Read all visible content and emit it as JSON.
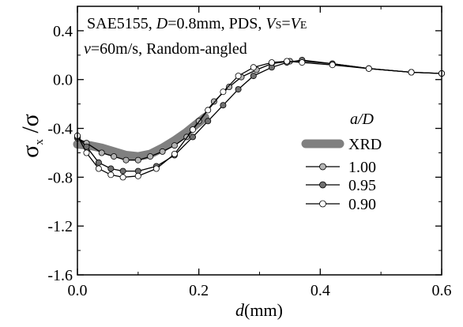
{
  "chart_data": {
    "type": "line",
    "xlabel_var": "d",
    "xlabel_unit": "(mm)",
    "ylabel_var": "σ",
    "ylabel_sub": "x",
    "ylabel_den": "σ",
    "xlim": [
      0.0,
      0.6
    ],
    "ylim": [
      -1.6,
      0.6
    ],
    "x_ticks": [
      0.0,
      0.2,
      0.4,
      0.6
    ],
    "x_tick_labels": [
      "0.0",
      "0.2",
      "0.4",
      "0.6"
    ],
    "y_ticks": [
      0.4,
      0.0,
      -0.4,
      -0.8,
      -1.2,
      -1.6
    ],
    "y_tick_labels": [
      "0.4",
      "0.0",
      "-0.4",
      "-0.8",
      "-1.2",
      "-1.6"
    ],
    "grid": false,
    "annotation_line1": "SAE5155, D=0.8mm, PDS, VS=VE",
    "annotation_line2": "v=60m/s, Random-angled",
    "legend_title": "a/D",
    "legend_position": "right",
    "series": [
      {
        "name": "XRD",
        "style": "thick-band",
        "color": "#808080",
        "x": [
          0.0,
          0.02,
          0.04,
          0.06,
          0.08,
          0.1,
          0.12,
          0.14,
          0.16,
          0.18,
          0.2,
          0.21
        ],
        "y": [
          -0.53,
          -0.54,
          -0.56,
          -0.59,
          -0.62,
          -0.63,
          -0.61,
          -0.56,
          -0.5,
          -0.43,
          -0.35,
          -0.31
        ]
      },
      {
        "name": "1.00",
        "style": "line-markers",
        "marker_fill": "#b4b4b4",
        "x": [
          0.0,
          0.015,
          0.04,
          0.06,
          0.08,
          0.1,
          0.12,
          0.14,
          0.16,
          0.18,
          0.2,
          0.225,
          0.25,
          0.27,
          0.295,
          0.32,
          0.35,
          0.37,
          0.42,
          0.48,
          0.55,
          0.6
        ],
        "y": [
          -0.48,
          -0.52,
          -0.6,
          -0.63,
          -0.66,
          -0.66,
          -0.63,
          -0.59,
          -0.54,
          -0.47,
          -0.34,
          -0.18,
          -0.06,
          0.02,
          0.08,
          0.13,
          0.15,
          0.15,
          0.13,
          0.09,
          0.06,
          0.05
        ]
      },
      {
        "name": "0.95",
        "style": "line-markers",
        "marker_fill": "#707070",
        "x": [
          0.0,
          0.015,
          0.035,
          0.055,
          0.075,
          0.1,
          0.13,
          0.16,
          0.19,
          0.215,
          0.24,
          0.265,
          0.29,
          0.32,
          0.345,
          0.37,
          0.42,
          0.48,
          0.55,
          0.6
        ],
        "y": [
          -0.47,
          -0.55,
          -0.68,
          -0.73,
          -0.75,
          -0.75,
          -0.71,
          -0.62,
          -0.47,
          -0.34,
          -0.21,
          -0.08,
          0.03,
          0.1,
          0.14,
          0.16,
          0.13,
          0.09,
          0.06,
          0.05
        ]
      },
      {
        "name": "0.90",
        "style": "line-markers",
        "marker_fill": "#ffffff",
        "x": [
          0.0,
          0.015,
          0.035,
          0.055,
          0.075,
          0.1,
          0.13,
          0.16,
          0.19,
          0.215,
          0.24,
          0.265,
          0.29,
          0.32,
          0.345,
          0.37,
          0.42,
          0.48,
          0.55,
          0.6
        ],
        "y": [
          -0.46,
          -0.6,
          -0.73,
          -0.78,
          -0.8,
          -0.79,
          -0.73,
          -0.61,
          -0.41,
          -0.25,
          -0.1,
          0.03,
          0.1,
          0.14,
          0.15,
          0.14,
          0.12,
          0.09,
          0.06,
          0.05
        ]
      }
    ]
  }
}
